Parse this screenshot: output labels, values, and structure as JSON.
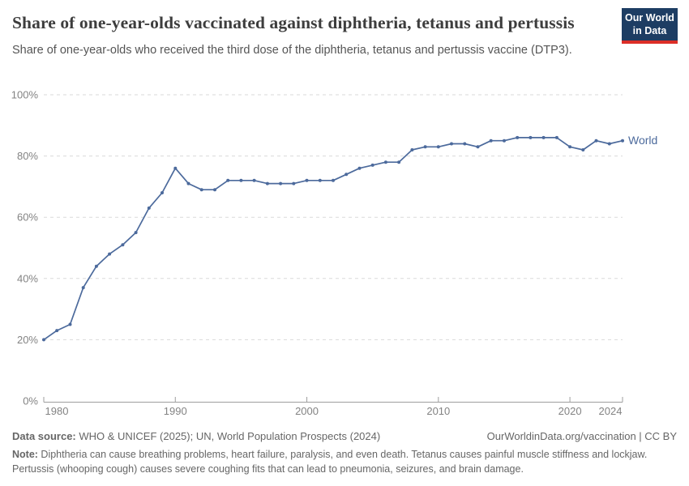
{
  "chart_data": {
    "type": "line",
    "title": "Share of one-year-olds vaccinated against diphtheria, tetanus and pertussis",
    "subtitle": "Share of one-year-olds who received the third dose of the diphtheria, tetanus and pertussis vaccine (DTP3).",
    "x": [
      1980,
      1981,
      1982,
      1983,
      1984,
      1985,
      1986,
      1987,
      1988,
      1989,
      1990,
      1991,
      1992,
      1993,
      1994,
      1995,
      1996,
      1997,
      1998,
      1999,
      2000,
      2001,
      2002,
      2003,
      2004,
      2005,
      2006,
      2007,
      2008,
      2009,
      2010,
      2011,
      2012,
      2013,
      2014,
      2015,
      2016,
      2017,
      2018,
      2019,
      2020,
      2021,
      2022,
      2023,
      2024
    ],
    "series": [
      {
        "name": "World",
        "color": "#4c6a9c",
        "values": [
          20,
          23,
          25,
          37,
          44,
          48,
          51,
          55,
          63,
          68,
          76,
          71,
          69,
          69,
          72,
          72,
          72,
          71,
          71,
          71,
          72,
          72,
          72,
          74,
          76,
          77,
          78,
          78,
          82,
          83,
          83,
          84,
          84,
          83,
          85,
          85,
          86,
          86,
          86,
          86,
          83,
          82,
          85,
          84,
          85
        ]
      }
    ],
    "xlabel": "",
    "ylabel": "",
    "ylim": [
      0,
      100
    ],
    "yticks": [
      0,
      20,
      40,
      60,
      80,
      100
    ],
    "ytick_suffix": "%",
    "xticks": [
      1980,
      1990,
      2000,
      2010,
      2020,
      2024
    ],
    "grid": "horizontal-dashed",
    "legend_position": "end-of-line-label"
  },
  "logo": {
    "line1": "Our World",
    "line2": "in Data"
  },
  "footer": {
    "source_label": "Data source:",
    "source_text": " WHO & UNICEF (2025); UN, World Population Prospects (2024)",
    "citation": "OurWorldinData.org/vaccination | CC BY",
    "note_label": "Note:",
    "note_text": " Diphtheria can cause breathing problems, heart failure, paralysis, and even death. Tetanus causes painful muscle stiffness and lockjaw. Pertussis (whooping cough) causes severe coughing fits that can lead to pneumonia, seizures, and brain damage."
  },
  "colors": {
    "line": "#4c6a9c",
    "grid": "#dadada",
    "axis": "#9e9e9e",
    "tick_label": "#838383",
    "title": "#3d3d3d",
    "subtitle": "#555555",
    "footer": "#666666",
    "logo_bg": "#1d3d63",
    "logo_bar": "#dc2e27"
  }
}
